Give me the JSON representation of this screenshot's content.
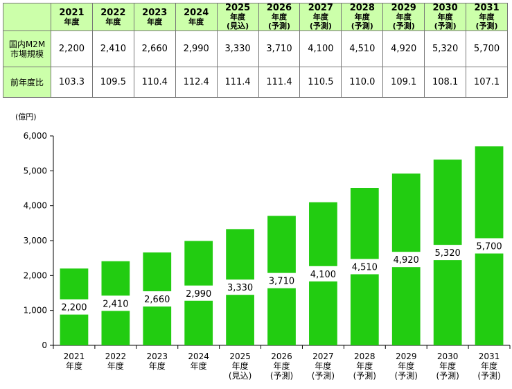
{
  "table": {
    "rows": [
      {
        "label_lines": [
          "国内M2M",
          "市場規模"
        ],
        "values": [
          "2,200",
          "2,410",
          "2,660",
          "2,990",
          "3,330",
          "3,710",
          "4,100",
          "4,510",
          "4,920",
          "5,320",
          "5,700"
        ]
      },
      {
        "label_lines": [
          "前年度比"
        ],
        "values": [
          "103.3",
          "109.5",
          "110.4",
          "112.4",
          "111.4",
          "111.4",
          "110.5",
          "110.0",
          "109.1",
          "108.1",
          "107.1"
        ]
      }
    ]
  },
  "chart_data": {
    "type": "bar",
    "categories": [
      [
        "2021",
        "年度"
      ],
      [
        "2022",
        "年度"
      ],
      [
        "2023",
        "年度"
      ],
      [
        "2024",
        "年度"
      ],
      [
        "2025",
        "年度",
        "(見込)"
      ],
      [
        "2026",
        "年度",
        "(予測)"
      ],
      [
        "2027",
        "年度",
        "(予測)"
      ],
      [
        "2028",
        "年度",
        "(予測)"
      ],
      [
        "2029",
        "年度",
        "(予測)"
      ],
      [
        "2030",
        "年度",
        "(予測)"
      ],
      [
        "2031",
        "年度",
        "(予測)"
      ]
    ],
    "values": [
      2200,
      2410,
      2660,
      2990,
      3330,
      3710,
      4100,
      4510,
      4920,
      5320,
      5700
    ],
    "data_labels": [
      "2,200",
      "2,410",
      "2,660",
      "2,990",
      "3,330",
      "3,710",
      "4,100",
      "4,510",
      "4,920",
      "5,320",
      "5,700"
    ],
    "ylabel": "(億円)",
    "ylim": [
      0,
      6000
    ],
    "yticks": [
      0,
      1000,
      2000,
      3000,
      4000,
      5000,
      6000
    ],
    "ytick_labels": [
      "0",
      "1,000",
      "2,000",
      "3,000",
      "4,000",
      "5,000",
      "6,000"
    ],
    "bar_color": "#22cc11",
    "grid": false
  }
}
